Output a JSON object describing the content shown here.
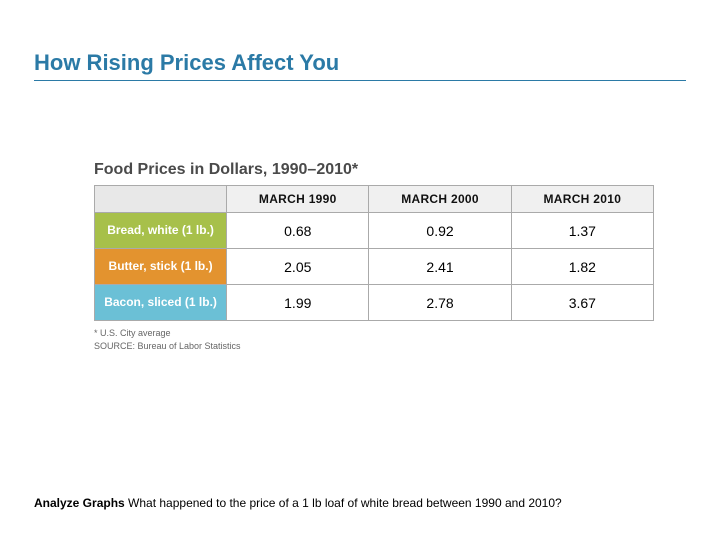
{
  "title": "How Rising Prices Affect You",
  "figure": {
    "title": "Food Prices in Dollars, 1990–2010*",
    "columns": [
      "",
      "MARCH 1990",
      "MARCH 2000",
      "MARCH 2010"
    ],
    "rows": [
      {
        "label": "Bread, white\n(1 lb.)",
        "color": "#a7c04a",
        "values": [
          "0.68",
          "0.92",
          "1.37"
        ]
      },
      {
        "label": "Butter, stick\n(1 lb.)",
        "color": "#e3932f",
        "values": [
          "2.05",
          "2.41",
          "1.82"
        ]
      },
      {
        "label": "Bacon, sliced\n(1 lb.)",
        "color": "#6bc0d6",
        "values": [
          "1.99",
          "2.78",
          "3.67"
        ]
      }
    ],
    "footnote1": "* U.S. City average",
    "footnote2": "SOURCE: Bureau of Labor Statistics"
  },
  "question": {
    "lead": "Analyze Graphs",
    "text": " What happened to the price of a 1 lb loaf of white bread between 1990 and 2010?"
  }
}
